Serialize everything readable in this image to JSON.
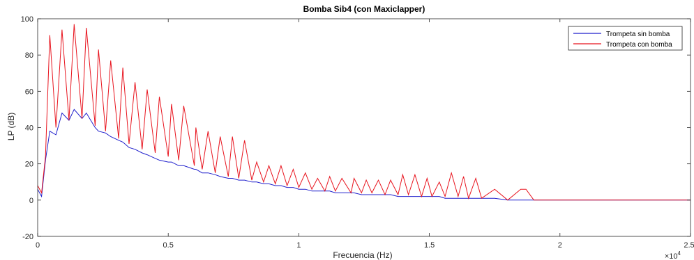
{
  "chart_data": {
    "type": "line",
    "title": "Bomba Sib4 (con Maxiclapper)",
    "xlabel": "Frecuencia (Hz)",
    "ylabel": "LP (dB)",
    "x_exponent_label": "×10",
    "x_exponent_power": "4",
    "xlim": [
      0,
      25000
    ],
    "ylim": [
      -20,
      100
    ],
    "x_ticks": [
      0,
      5000,
      10000,
      15000,
      20000,
      25000
    ],
    "x_tick_labels": [
      "0",
      "0.5",
      "1",
      "1.5",
      "2",
      "2.5"
    ],
    "y_ticks": [
      -20,
      0,
      20,
      40,
      60,
      80,
      100
    ],
    "y_tick_labels": [
      "-20",
      "0",
      "20",
      "40",
      "60",
      "80",
      "100"
    ],
    "grid": false,
    "legend_position": "top-right",
    "series": [
      {
        "name": "Trompeta sin bomba",
        "color": "#1f1fcc",
        "x": [
          0,
          150,
          300,
          466,
          700,
          932,
          1200,
          1398,
          1700,
          1864,
          2200,
          2330,
          2600,
          2796,
          3100,
          3262,
          3500,
          3728,
          4000,
          4194,
          4500,
          4660,
          5000,
          5126,
          5400,
          5592,
          6000,
          6058,
          6300,
          6524,
          6800,
          6990,
          7300,
          7456,
          7700,
          7922,
          8200,
          8388,
          8650,
          8854,
          9100,
          9320,
          9550,
          9786,
          10000,
          10252,
          10500,
          10718,
          11000,
          11184,
          11400,
          11650,
          12000,
          12116,
          12400,
          12582,
          12800,
          13048,
          13300,
          13514,
          13800,
          13980,
          14200,
          14446,
          14700,
          14912,
          15100,
          15378,
          15600,
          15844,
          16100,
          16310,
          16500,
          16776,
          17000,
          17500,
          18000,
          18500,
          19000,
          20000,
          21000,
          22000,
          23000,
          24000,
          25000
        ],
        "y": [
          6,
          2,
          22,
          38,
          36,
          48,
          44,
          50,
          45,
          48,
          40,
          38,
          37,
          35,
          33,
          32,
          29,
          28,
          26,
          25,
          23,
          22,
          21,
          21,
          19,
          19,
          17,
          17,
          15,
          15,
          14,
          13,
          12,
          12,
          11,
          11,
          10,
          10,
          9,
          9,
          8,
          8,
          7,
          7,
          6,
          6,
          5,
          5,
          5,
          5,
          4,
          4,
          4,
          4,
          3,
          3,
          3,
          3,
          3,
          3,
          2,
          2,
          2,
          2,
          2,
          2,
          2,
          2,
          1,
          1,
          1,
          1,
          1,
          1,
          1,
          1,
          0,
          0,
          0,
          0,
          0,
          0,
          0,
          0,
          0
        ]
      },
      {
        "name": "Trompeta con bomba",
        "color": "#e8141e",
        "x": [
          0,
          150,
          300,
          466,
          700,
          932,
          1200,
          1398,
          1700,
          1864,
          2200,
          2330,
          2600,
          2796,
          3100,
          3262,
          3500,
          3728,
          4000,
          4194,
          4500,
          4660,
          5000,
          5126,
          5400,
          5592,
          6000,
          6058,
          6300,
          6524,
          6800,
          6990,
          7300,
          7456,
          7700,
          7922,
          8200,
          8388,
          8650,
          8854,
          9100,
          9320,
          9550,
          9786,
          10000,
          10252,
          10500,
          10718,
          11000,
          11184,
          11400,
          11650,
          12000,
          12116,
          12400,
          12582,
          12800,
          13048,
          13300,
          13514,
          13800,
          13980,
          14200,
          14446,
          14700,
          14912,
          15100,
          15378,
          15600,
          15844,
          16100,
          16310,
          16500,
          16776,
          17000,
          17500,
          18000,
          18500,
          18700,
          19000,
          20000,
          21000,
          22000,
          23000,
          24000,
          25000
        ],
        "y": [
          8,
          4,
          24,
          91,
          40,
          94,
          44,
          97,
          45,
          95,
          41,
          83,
          38,
          77,
          34,
          73,
          31,
          65,
          28,
          61,
          26,
          57,
          24,
          53,
          22,
          52,
          19,
          40,
          17,
          38,
          15,
          35,
          13,
          35,
          12,
          33,
          11,
          21,
          10,
          19,
          9,
          19,
          8,
          17,
          7,
          15,
          6,
          12,
          5,
          13,
          5,
          12,
          4,
          12,
          4,
          11,
          4,
          11,
          3,
          11,
          3,
          14,
          3,
          14,
          2,
          12,
          2,
          10,
          2,
          15,
          2,
          13,
          1,
          12,
          1,
          6,
          0,
          6,
          6,
          0,
          0,
          0,
          0,
          0,
          0,
          0
        ]
      }
    ]
  }
}
